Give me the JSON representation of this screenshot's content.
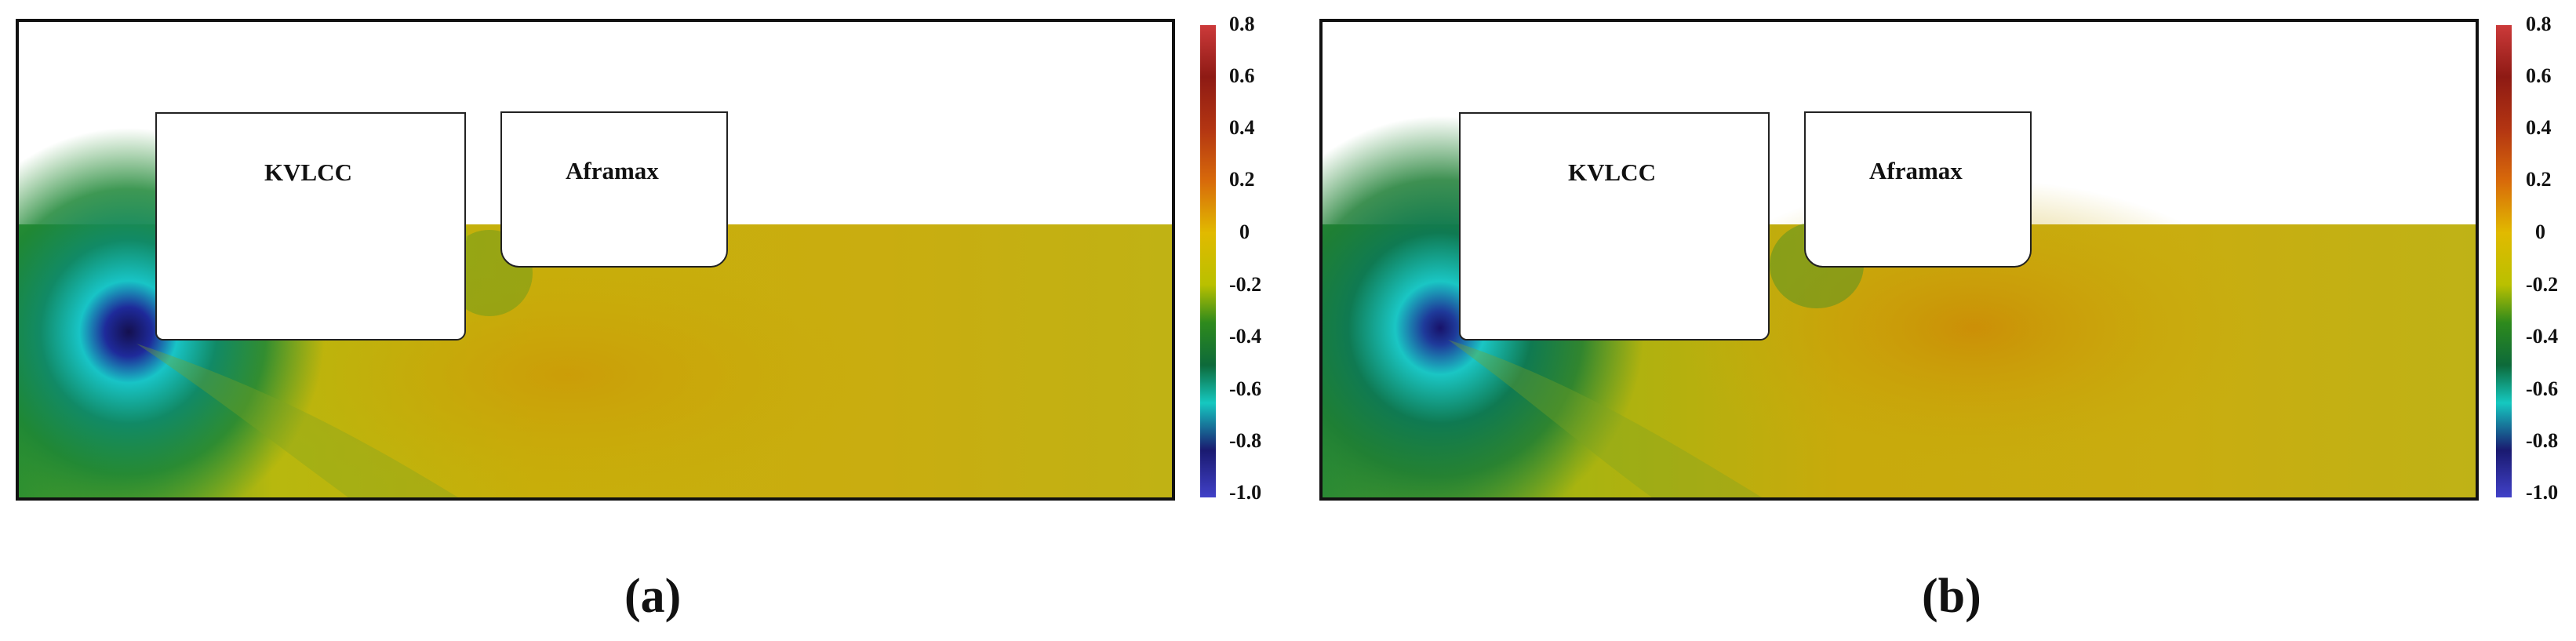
{
  "panels": [
    {
      "label": "(a)",
      "ship1": "KVLCC",
      "ship2": "Aframax"
    },
    {
      "label": "(b)",
      "ship1": "KVLCC",
      "ship2": "Aframax"
    }
  ],
  "colorbar": {
    "ticks": [
      "0.8",
      "0.6",
      "0.4",
      "0.2",
      "0",
      "-0.2",
      "-0.4",
      "-0.6",
      "-0.8",
      "-1.0"
    ],
    "colors": [
      "#cc3a3a",
      "#8e1a14",
      "#b33512",
      "#d86a0a",
      "#e1ba00",
      "#b9c000",
      "#2e8a1c",
      "#0d6a3a",
      "#15c8c0",
      "#1a1a70",
      "#4141c8"
    ]
  }
}
